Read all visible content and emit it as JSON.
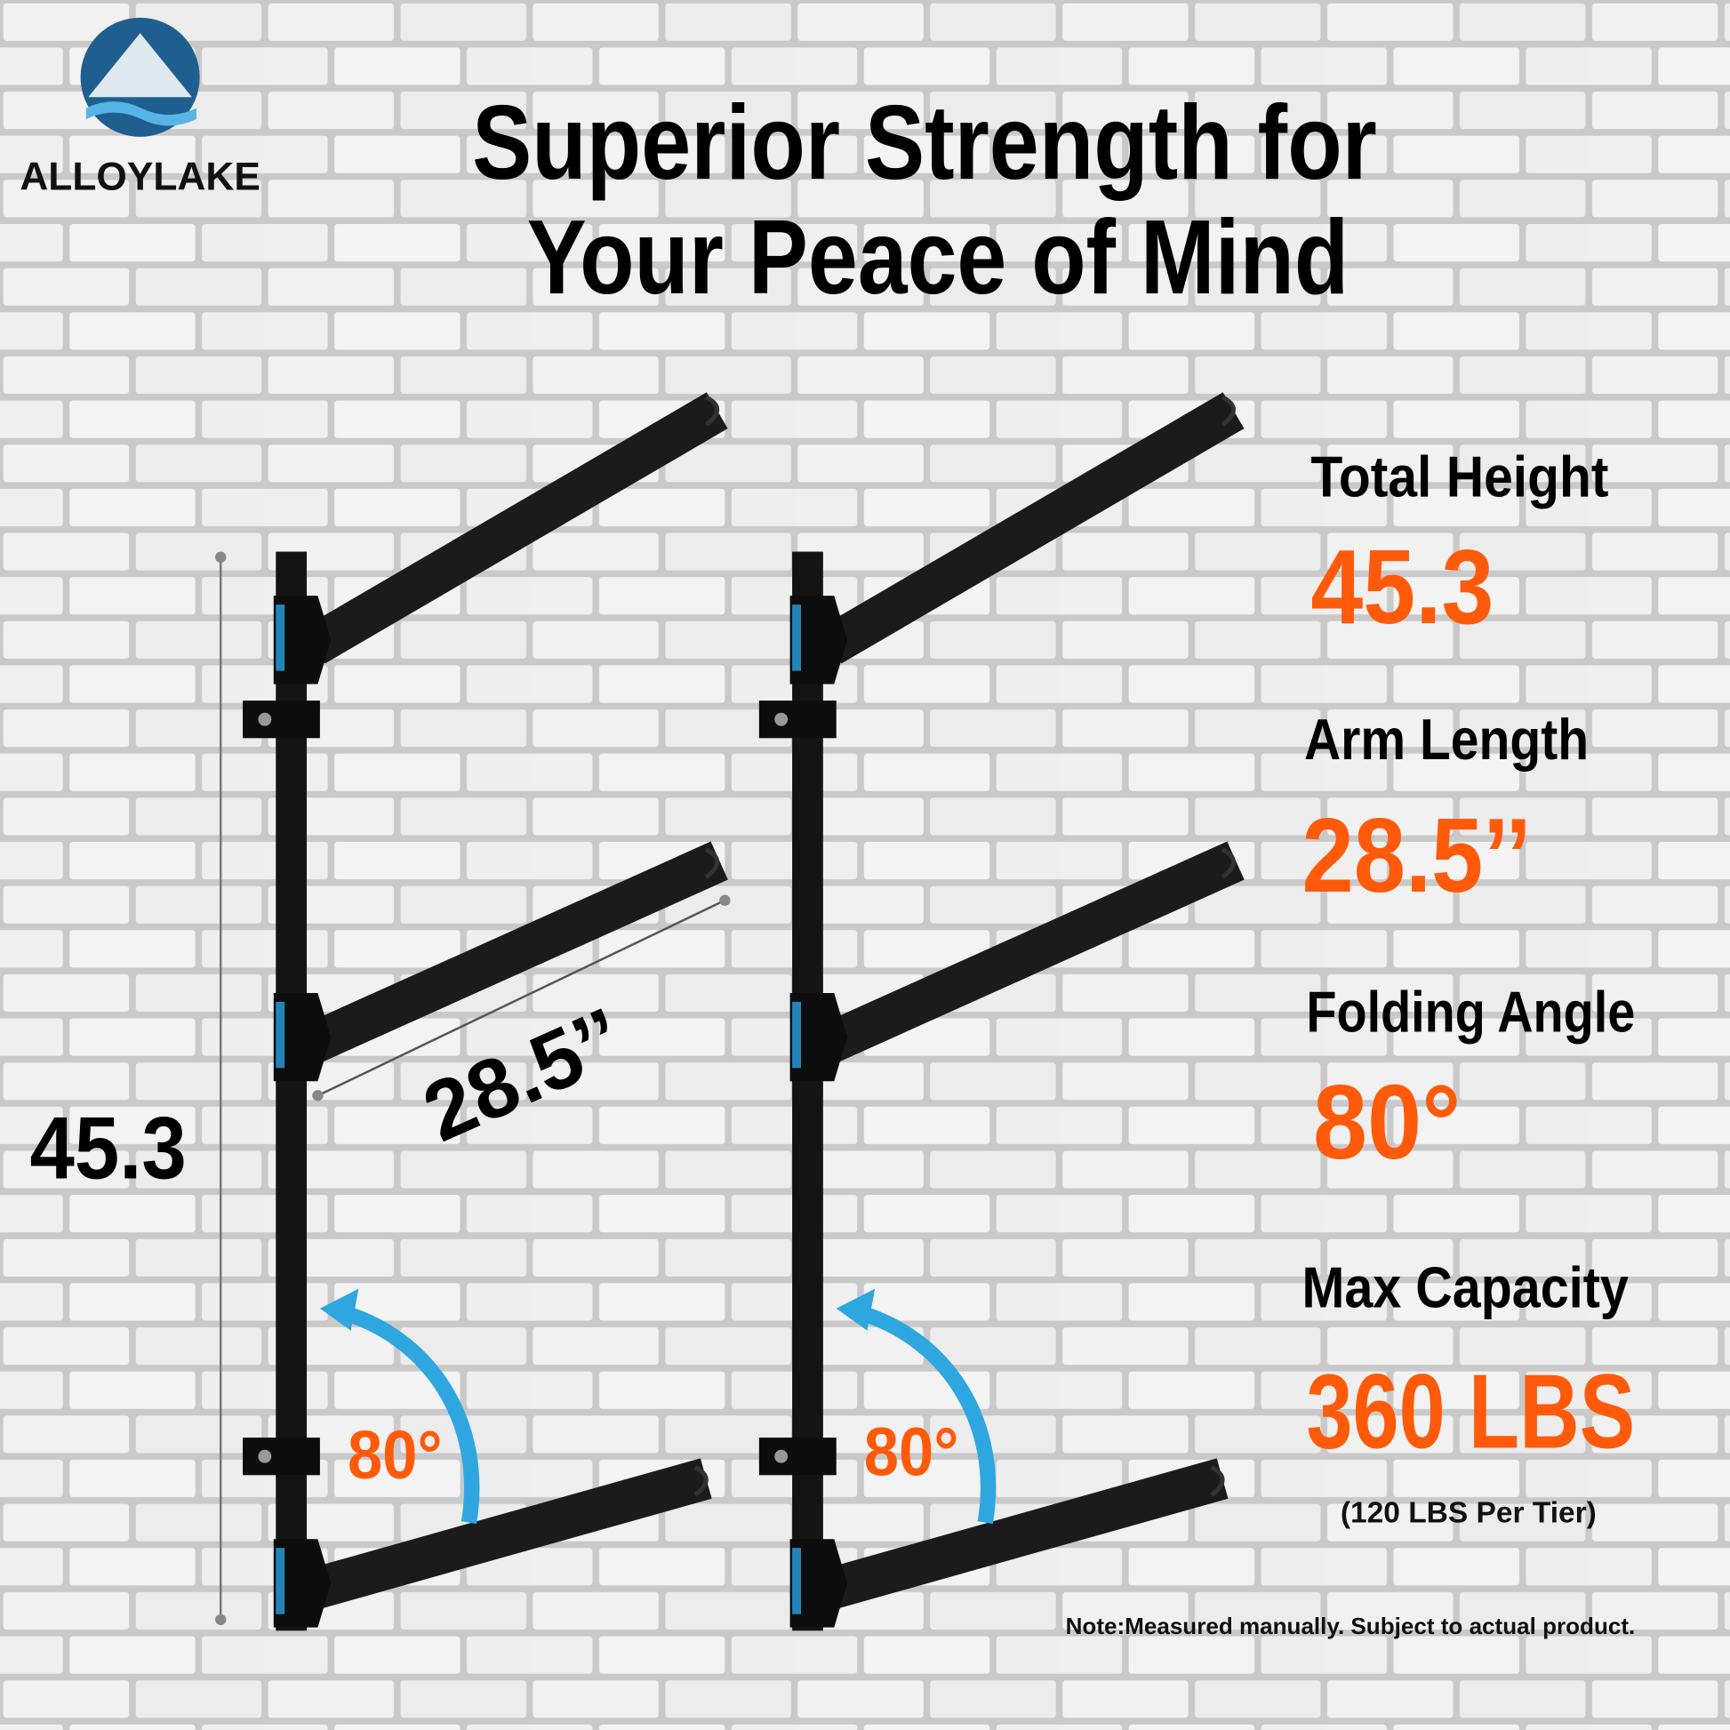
{
  "brand": {
    "name": "ALLOYLAKE"
  },
  "header": {
    "title_lines": [
      "Superior Strength for",
      "Your Peace of Mind"
    ]
  },
  "diagram": {
    "height_label": "45.3",
    "arm_label": "28.5’’",
    "angle_labels": [
      "80°",
      "80°"
    ]
  },
  "specs": [
    {
      "label": "Total Height",
      "value": "45.3"
    },
    {
      "label": "Arm Length",
      "value": "28.5’’"
    },
    {
      "label": "Folding Angle",
      "value": "80°"
    },
    {
      "label": "Max Capacity",
      "value": "360 LBS",
      "note": "(120 LBS Per Tier)"
    }
  ],
  "footer": {
    "note": "Note:Measured manually. Subject to actual product."
  }
}
